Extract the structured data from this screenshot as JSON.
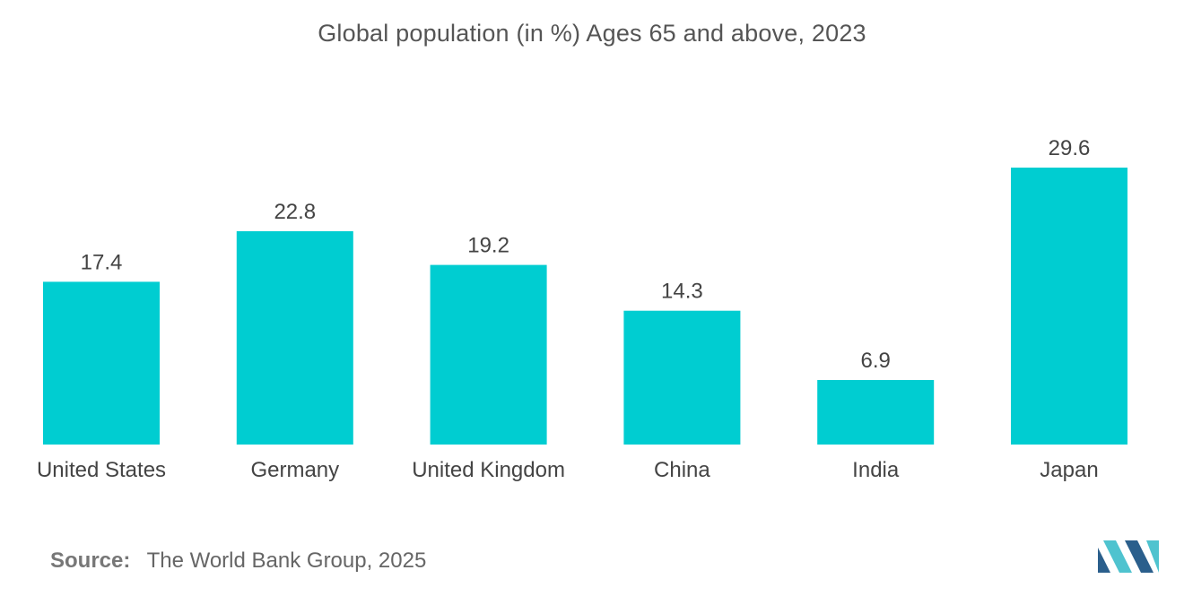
{
  "colors": {
    "bar": "#00CDD1",
    "text": "#444444",
    "logo_dark": "#2B5F8C",
    "logo_light": "#4FC3CF"
  },
  "chart_data": {
    "type": "bar",
    "title": "Global population (in %) Ages 65 and above, 2023",
    "categories": [
      "United States",
      "Germany",
      "United Kingdom",
      "China",
      "India",
      "Japan"
    ],
    "values": [
      17.4,
      22.8,
      19.2,
      14.3,
      6.9,
      29.6
    ],
    "value_labels": [
      "17.4",
      "22.8",
      "19.2",
      "14.3",
      "6.9",
      "29.6"
    ],
    "xlabel": "",
    "ylabel": "",
    "ylim": [
      0,
      29.6
    ],
    "grid": false,
    "legend": "none"
  },
  "source": {
    "label": "Source:",
    "text": "The World Bank Group, 2025"
  },
  "logo": {
    "icon": "mordor-intelligence-logo-icon"
  }
}
